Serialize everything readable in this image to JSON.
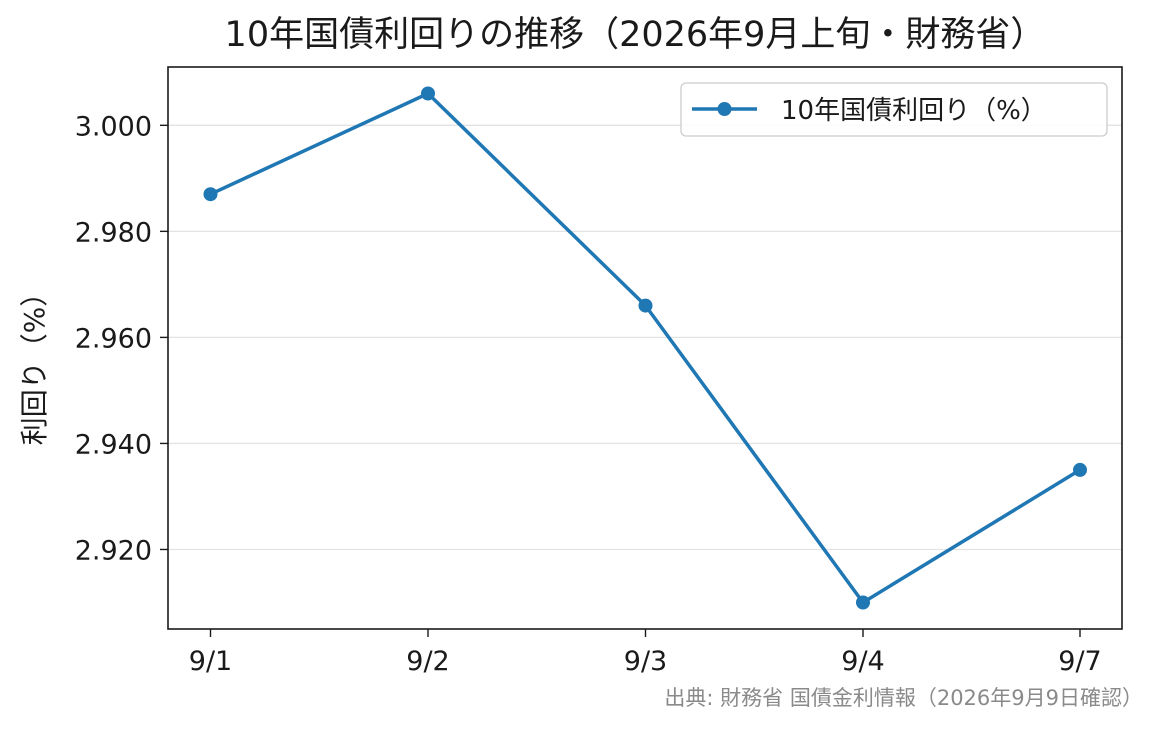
{
  "chart_data": {
    "type": "line",
    "title": "10年国債利回りの推移（2026年9月上旬・財務省）",
    "xlabel": "",
    "ylabel": "利回り（%）",
    "categories": [
      "9/1",
      "9/2",
      "9/3",
      "9/4",
      "9/7"
    ],
    "series": [
      {
        "name": "10年国債利回り（%）",
        "values": [
          2.987,
          3.006,
          2.966,
          2.91,
          2.935
        ],
        "color": "#1f77b4",
        "marker": "circle"
      }
    ],
    "yticks": [
      "2.920",
      "2.940",
      "2.960",
      "2.980",
      "3.000"
    ],
    "ytick_values": [
      2.92,
      2.94,
      2.96,
      2.98,
      3.0
    ],
    "ylim": [
      2.905,
      3.011
    ],
    "grid": "horizontal",
    "legend": "top-right",
    "source_note": "出典: 財務省 国債金利情報（2026年9月9日確認）"
  }
}
